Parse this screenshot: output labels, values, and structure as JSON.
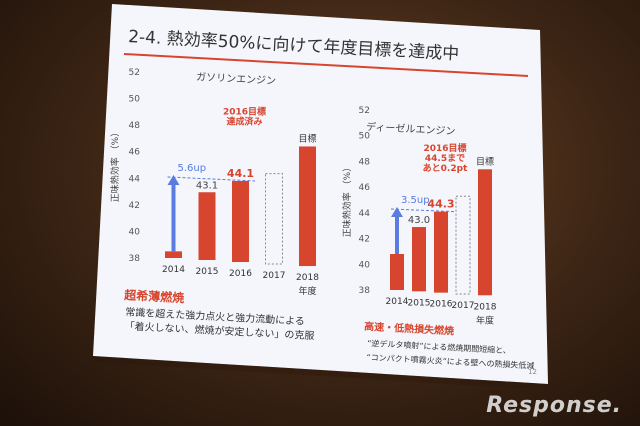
{
  "slide": {
    "title": "2-4. 熱効率50%に向けて年度目標を達成中",
    "page_number": "12",
    "colors": {
      "accent": "#d8452e",
      "blue": "#5a7be0",
      "title_line": "#d8452e"
    }
  },
  "watermark": "Response.",
  "chart_data": [
    {
      "type": "bar",
      "title": "ガソリンエンジン",
      "ylabel": "正味熱効率 （%）",
      "xlabel": "年度",
      "ylim": [
        38,
        52
      ],
      "yticks": [
        38,
        40,
        42,
        44,
        46,
        48,
        50,
        52
      ],
      "categories": [
        "2014",
        "2015",
        "2016",
        "2017",
        "2018"
      ],
      "values": [
        38.5,
        43.1,
        44.1,
        null,
        47.0
      ],
      "value_labels": [
        "",
        "43.1",
        "44.1",
        "",
        ""
      ],
      "target_label": "目標",
      "target_note": "2016目標\n達成済み",
      "gain_label": "5.6up",
      "gain_from": 38.5,
      "gain_to": 44.1,
      "footer_heading": "超希薄燃焼",
      "footer_lines": [
        "常識を超えた強力点火と強力流動による",
        "「着火しない、燃焼が安定しない」の克服"
      ]
    },
    {
      "type": "bar",
      "title": "ディーゼルエンジン",
      "ylabel": "正味熱効率 （%）",
      "xlabel": "年度",
      "ylim": [
        38,
        52
      ],
      "yticks": [
        38,
        40,
        42,
        44,
        46,
        48,
        50,
        52
      ],
      "categories": [
        "2014",
        "2015",
        "2016",
        "2017",
        "2018"
      ],
      "values": [
        40.8,
        43.0,
        44.3,
        null,
        47.8
      ],
      "value_labels": [
        "",
        "43.0",
        "44.3",
        "",
        ""
      ],
      "target_label": "目標",
      "target_note": "2016目標\n44.5まで\nあと0.2pt",
      "gain_label": "3.5up",
      "gain_from": 40.8,
      "gain_to": 44.3,
      "footer_heading": "高速・低熱損失燃焼",
      "footer_lines": [
        "“逆デルタ噴射”による燃焼期間短縮と、",
        "“コンパクト噴霧火炎”による壁への熱損失低減"
      ]
    }
  ]
}
